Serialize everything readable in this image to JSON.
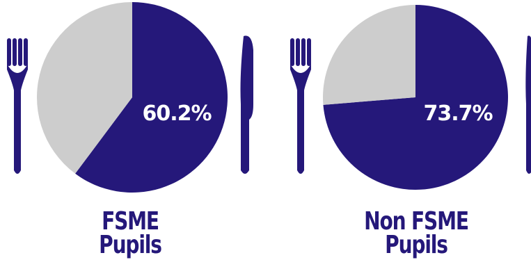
{
  "colors": {
    "primary": "#25187a",
    "secondary": "#cdcdcd",
    "label_text": "#ffffff",
    "background": "#ffffff"
  },
  "chart_data": [
    {
      "type": "pie",
      "name_lines": [
        "FSME",
        "Pupils"
      ],
      "slices": [
        {
          "value": 60.2,
          "color": "#25187a"
        },
        {
          "value": 39.8,
          "color": "#cdcdcd"
        }
      ],
      "center_label": "60.2%"
    },
    {
      "type": "pie",
      "name_lines": [
        "Non FSME",
        "Pupils"
      ],
      "slices": [
        {
          "value": 73.7,
          "color": "#25187a"
        },
        {
          "value": 26.3,
          "color": "#cdcdcd"
        }
      ],
      "center_label": "73.7%"
    }
  ]
}
